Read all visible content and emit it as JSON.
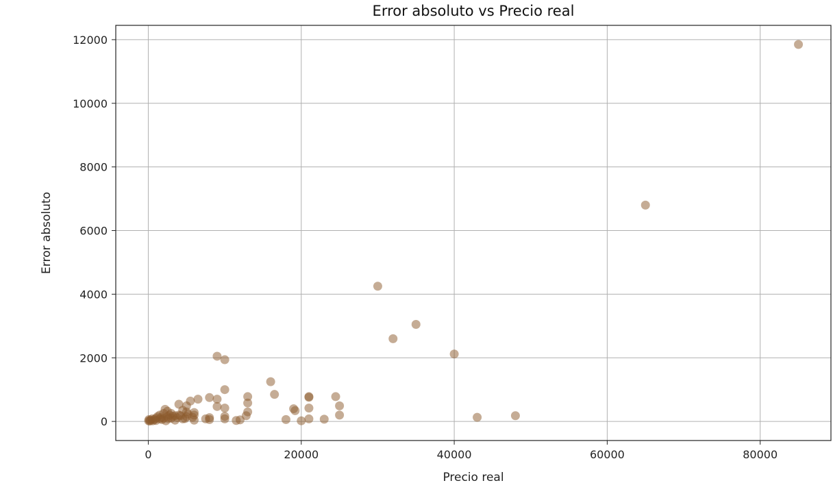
{
  "chart_data": {
    "type": "scatter",
    "title": "Error absoluto vs Precio real",
    "xlabel": "Precio real",
    "ylabel": "Error absoluto",
    "xlim": [
      -4250,
      89250
    ],
    "ylim": [
      -600,
      12450
    ],
    "x_ticks": [
      0,
      20000,
      40000,
      60000,
      80000
    ],
    "x_tick_labels": [
      "0",
      "20000",
      "40000",
      "60000",
      "80000"
    ],
    "y_ticks": [
      0,
      2000,
      4000,
      6000,
      8000,
      10000,
      12000
    ],
    "y_tick_labels": [
      "0",
      "2000",
      "4000",
      "6000",
      "8000",
      "10000",
      "12000"
    ],
    "grid": true,
    "marker_color": "#8b5a2b",
    "marker_alpha": 0.5,
    "points": [
      {
        "x": 85000,
        "y": 11850
      },
      {
        "x": 65000,
        "y": 6800
      },
      {
        "x": 30000,
        "y": 4250
      },
      {
        "x": 35000,
        "y": 3050
      },
      {
        "x": 32000,
        "y": 2600
      },
      {
        "x": 40000,
        "y": 2120
      },
      {
        "x": 48000,
        "y": 180
      },
      {
        "x": 43000,
        "y": 130
      },
      {
        "x": 9000,
        "y": 2050
      },
      {
        "x": 10000,
        "y": 1940
      },
      {
        "x": 16000,
        "y": 1250
      },
      {
        "x": 16500,
        "y": 850
      },
      {
        "x": 10000,
        "y": 1000
      },
      {
        "x": 13000,
        "y": 780
      },
      {
        "x": 13000,
        "y": 580
      },
      {
        "x": 13000,
        "y": 300
      },
      {
        "x": 12800,
        "y": 180
      },
      {
        "x": 12000,
        "y": 50
      },
      {
        "x": 11500,
        "y": 30
      },
      {
        "x": 19000,
        "y": 400
      },
      {
        "x": 19200,
        "y": 340
      },
      {
        "x": 21000,
        "y": 780
      },
      {
        "x": 21000,
        "y": 760
      },
      {
        "x": 21000,
        "y": 420
      },
      {
        "x": 21000,
        "y": 80
      },
      {
        "x": 18000,
        "y": 60
      },
      {
        "x": 20000,
        "y": 20
      },
      {
        "x": 23000,
        "y": 70
      },
      {
        "x": 24500,
        "y": 780
      },
      {
        "x": 25000,
        "y": 490
      },
      {
        "x": 25000,
        "y": 200
      },
      {
        "x": 9000,
        "y": 700
      },
      {
        "x": 9000,
        "y": 470
      },
      {
        "x": 10000,
        "y": 420
      },
      {
        "x": 10000,
        "y": 160
      },
      {
        "x": 10000,
        "y": 80
      },
      {
        "x": 8000,
        "y": 750
      },
      {
        "x": 8000,
        "y": 120
      },
      {
        "x": 8000,
        "y": 60
      },
      {
        "x": 7500,
        "y": 80
      },
      {
        "x": 6500,
        "y": 700
      },
      {
        "x": 6000,
        "y": 280
      },
      {
        "x": 6000,
        "y": 200
      },
      {
        "x": 6000,
        "y": 40
      },
      {
        "x": 5500,
        "y": 640
      },
      {
        "x": 5000,
        "y": 490
      },
      {
        "x": 5000,
        "y": 300
      },
      {
        "x": 5000,
        "y": 150
      },
      {
        "x": 4500,
        "y": 350
      },
      {
        "x": 4500,
        "y": 80
      },
      {
        "x": 4000,
        "y": 540
      },
      {
        "x": 4000,
        "y": 200
      },
      {
        "x": 3500,
        "y": 180
      },
      {
        "x": 3500,
        "y": 40
      },
      {
        "x": 3000,
        "y": 250
      },
      {
        "x": 3000,
        "y": 100
      },
      {
        "x": 2500,
        "y": 320
      },
      {
        "x": 2500,
        "y": 150
      },
      {
        "x": 2200,
        "y": 380
      },
      {
        "x": 2000,
        "y": 250
      },
      {
        "x": 2000,
        "y": 100
      },
      {
        "x": 1800,
        "y": 60
      },
      {
        "x": 1500,
        "y": 200
      },
      {
        "x": 1500,
        "y": 80
      },
      {
        "x": 1200,
        "y": 150
      },
      {
        "x": 1000,
        "y": 100
      },
      {
        "x": 1000,
        "y": 30
      },
      {
        "x": 800,
        "y": 60
      },
      {
        "x": 600,
        "y": 20
      },
      {
        "x": 500,
        "y": 80
      },
      {
        "x": 300,
        "y": 40
      },
      {
        "x": 200,
        "y": 10
      },
      {
        "x": 100,
        "y": 60
      },
      {
        "x": 50,
        "y": 20
      },
      {
        "x": 2800,
        "y": 200
      },
      {
        "x": 3200,
        "y": 160
      },
      {
        "x": 3800,
        "y": 120
      },
      {
        "x": 4200,
        "y": 180
      },
      {
        "x": 4800,
        "y": 90
      },
      {
        "x": 5200,
        "y": 230
      },
      {
        "x": 5800,
        "y": 130
      },
      {
        "x": 2300,
        "y": 20
      },
      {
        "x": 1700,
        "y": 130
      },
      {
        "x": 2600,
        "y": 90
      }
    ]
  }
}
